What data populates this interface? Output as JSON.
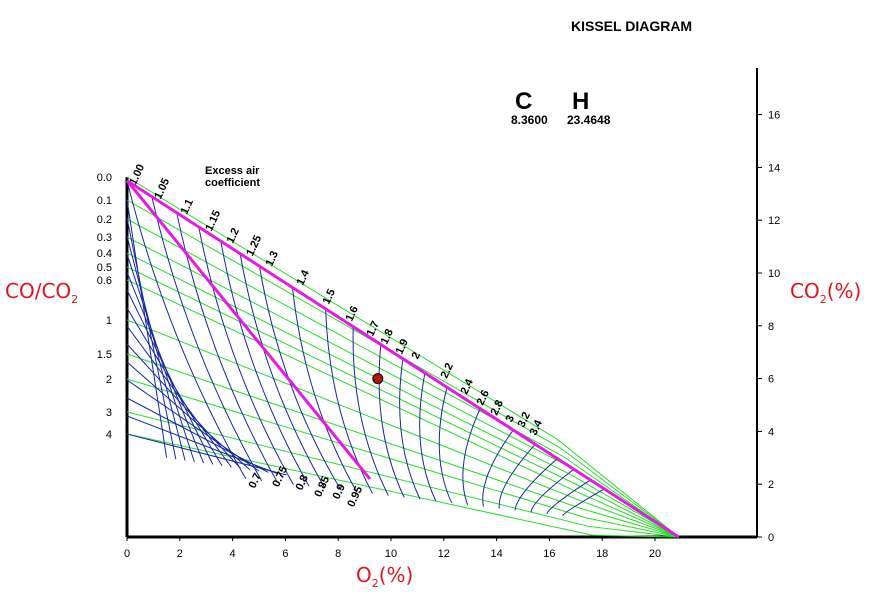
{
  "title": "KISSEL DIAGRAM",
  "fuel": {
    "c_label": "C",
    "c_value": "8.3600",
    "h_label": "H",
    "h_value": "23.4648"
  },
  "labels": {
    "left_axis_main": "CO/CO",
    "left_axis_sub": "2",
    "right_axis_main": "CO",
    "right_axis_sub": "2",
    "right_axis_unit": "(%)",
    "x_axis_main": "O",
    "x_axis_sub": "2",
    "x_axis_unit": "(%)",
    "excess_air_line1": "Excess air",
    "excess_air_line2": "coefficient"
  },
  "colors": {
    "boundary": "#e619e6",
    "excess_air_lines": "#1428a0",
    "co_ratio_lines": "#28dc28",
    "axis_label": "#e0141e",
    "point_fill": "#b41414"
  },
  "chart_data": {
    "type": "scatter",
    "title": "KISSEL DIAGRAM",
    "xlabel": "O2(%)",
    "ylabel": "CO2(%)",
    "xlim": [
      0,
      23.8
    ],
    "ylim": [
      0,
      17.4
    ],
    "x_ticks": [
      0,
      2,
      4,
      6,
      8,
      10,
      12,
      14,
      16,
      18,
      20
    ],
    "y_ticks": [
      0,
      2,
      4,
      6,
      8,
      10,
      12,
      14,
      16
    ],
    "max_co2": 13.5,
    "max_o2": 20.9,
    "co_co2_ratio_ticks": [
      "0.0",
      "0.1",
      "0.2",
      "0.3",
      "0.4",
      "0.5",
      "0.6",
      "1",
      "1.5",
      "2",
      "3",
      "4"
    ],
    "excess_air_coefficient_labels": [
      "1.00",
      "1.05",
      "1.1",
      "1.15",
      "1.2",
      "1.25",
      "1.3",
      "1.4",
      "1.5",
      "1.6",
      "1.7",
      "1.8",
      "1.9",
      "2",
      "2.2",
      "2.4",
      "2.6",
      "2.8",
      "3",
      "3.2",
      "3.4"
    ],
    "sub_stoichiometric_labels": [
      "0.7",
      "0.75",
      "0.8",
      "0.85",
      "0.9",
      "0.95"
    ],
    "measured_point": {
      "x": 9.5,
      "y": 6.0
    }
  }
}
